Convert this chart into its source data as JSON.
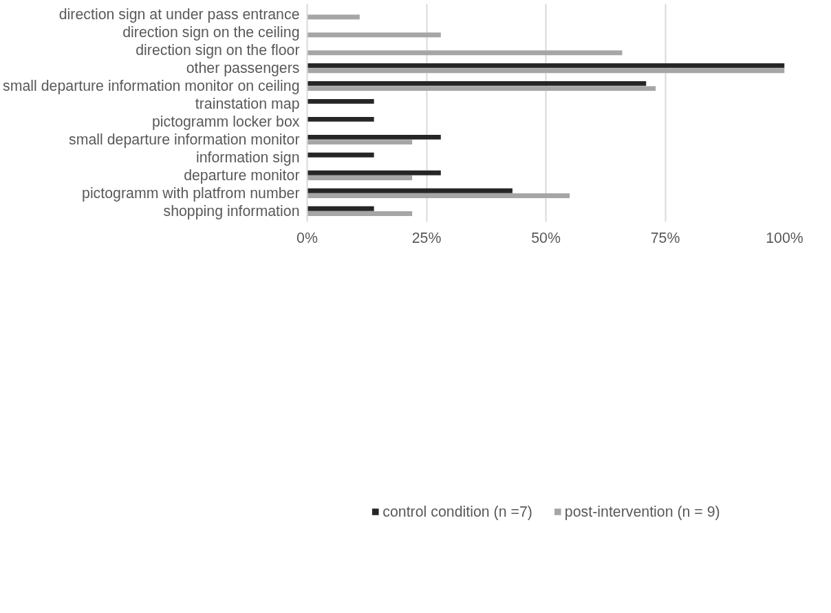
{
  "chart_data": {
    "type": "bar",
    "orientation": "horizontal",
    "categories": [
      "direction sign at under pass entrance",
      "direction sign on the ceiling",
      "direction sign on the floor",
      "other passengers",
      "small departure information monitor on ceiling",
      "trainstation map",
      "pictogramm locker box",
      "small departure information monitor",
      "information sign",
      "departure monitor",
      "pictogramm with platfrom number",
      "shopping information"
    ],
    "series": [
      {
        "name": "control condition (n =7)",
        "color": "#262626",
        "values": [
          null,
          null,
          null,
          100,
          71,
          14,
          14,
          28,
          14,
          28,
          43,
          14
        ]
      },
      {
        "name": "post-intervention (n = 9)",
        "color": "#a6a6a6",
        "values": [
          11,
          28,
          66,
          100,
          73,
          null,
          null,
          22,
          null,
          22,
          55,
          22
        ]
      }
    ],
    "xlim": [
      0,
      100
    ],
    "xticks": [
      {
        "value": 0,
        "label": "0%"
      },
      {
        "value": 25,
        "label": "25%"
      },
      {
        "value": 50,
        "label": "50%"
      },
      {
        "value": 75,
        "label": "75%"
      },
      {
        "value": 100,
        "label": "100%"
      }
    ],
    "grid": "x",
    "legend": "bottom"
  }
}
